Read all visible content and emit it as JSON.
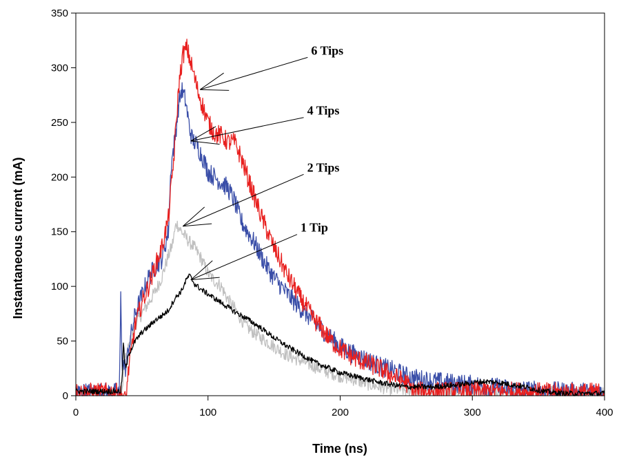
{
  "chart_data": {
    "type": "line",
    "xlabel": "Time (ns)",
    "ylabel": "Instantaneous current (mA)",
    "xlim": [
      0,
      400
    ],
    "ylim": [
      0,
      350
    ],
    "xticks": [
      0,
      100,
      200,
      300,
      400
    ],
    "yticks": [
      0,
      50,
      100,
      150,
      200,
      250,
      300,
      350
    ],
    "grid": false,
    "legend": "none",
    "series": [
      {
        "name": "6 Tips",
        "color": "#e8201f",
        "noise": 9,
        "points": [
          [
            0,
            3
          ],
          [
            30,
            3
          ],
          [
            36,
            0
          ],
          [
            38,
            0
          ],
          [
            40,
            25
          ],
          [
            45,
            65
          ],
          [
            50,
            85
          ],
          [
            55,
            100
          ],
          [
            60,
            118
          ],
          [
            65,
            135
          ],
          [
            70,
            162
          ],
          [
            74,
            215
          ],
          [
            78,
            285
          ],
          [
            81,
            312
          ],
          [
            84,
            318
          ],
          [
            88,
            300
          ],
          [
            92,
            280
          ],
          [
            96,
            265
          ],
          [
            100,
            250
          ],
          [
            105,
            240
          ],
          [
            110,
            238
          ],
          [
            115,
            232
          ],
          [
            120,
            232
          ],
          [
            125,
            218
          ],
          [
            130,
            200
          ],
          [
            135,
            182
          ],
          [
            140,
            165
          ],
          [
            145,
            150
          ],
          [
            150,
            135
          ],
          [
            155,
            123
          ],
          [
            160,
            110
          ],
          [
            165,
            100
          ],
          [
            170,
            89
          ],
          [
            175,
            80
          ],
          [
            180,
            70
          ],
          [
            185,
            63
          ],
          [
            190,
            55
          ],
          [
            195,
            48
          ],
          [
            200,
            43
          ],
          [
            210,
            35
          ],
          [
            220,
            30
          ],
          [
            230,
            25
          ],
          [
            240,
            18
          ],
          [
            250,
            12
          ],
          [
            255,
            4
          ],
          [
            265,
            4
          ],
          [
            300,
            4
          ],
          [
            330,
            4
          ],
          [
            360,
            3
          ],
          [
            400,
            3
          ]
        ]
      },
      {
        "name": "4 Tips",
        "color": "#3a4ea8",
        "noise": 9,
        "points": [
          [
            0,
            3
          ],
          [
            33,
            3
          ],
          [
            34,
            90
          ],
          [
            35,
            30
          ],
          [
            38,
            25
          ],
          [
            40,
            45
          ],
          [
            45,
            75
          ],
          [
            50,
            92
          ],
          [
            55,
            108
          ],
          [
            60,
            118
          ],
          [
            65,
            125
          ],
          [
            70,
            150
          ],
          [
            72,
            210
          ],
          [
            75,
            235
          ],
          [
            78,
            268
          ],
          [
            80,
            280
          ],
          [
            83,
            270
          ],
          [
            86,
            245
          ],
          [
            88,
            235
          ],
          [
            92,
            228
          ],
          [
            96,
            218
          ],
          [
            100,
            205
          ],
          [
            105,
            200
          ],
          [
            110,
            195
          ],
          [
            115,
            190
          ],
          [
            120,
            178
          ],
          [
            125,
            160
          ],
          [
            130,
            150
          ],
          [
            135,
            140
          ],
          [
            140,
            128
          ],
          [
            145,
            117
          ],
          [
            150,
            108
          ],
          [
            160,
            93
          ],
          [
            170,
            80
          ],
          [
            180,
            68
          ],
          [
            190,
            56
          ],
          [
            200,
            45
          ],
          [
            210,
            38
          ],
          [
            220,
            33
          ],
          [
            230,
            27
          ],
          [
            240,
            23
          ],
          [
            250,
            18
          ],
          [
            260,
            15
          ],
          [
            280,
            12
          ],
          [
            300,
            10
          ],
          [
            330,
            6
          ],
          [
            360,
            4
          ],
          [
            400,
            3
          ]
        ]
      },
      {
        "name": "2 Tips",
        "color": "#c0c0c0",
        "noise": 6,
        "points": [
          [
            0,
            3
          ],
          [
            35,
            3
          ],
          [
            37,
            30
          ],
          [
            40,
            45
          ],
          [
            45,
            65
          ],
          [
            50,
            75
          ],
          [
            55,
            85
          ],
          [
            60,
            95
          ],
          [
            65,
            108
          ],
          [
            70,
            128
          ],
          [
            73,
            138
          ],
          [
            76,
            158
          ],
          [
            80,
            150
          ],
          [
            85,
            142
          ],
          [
            90,
            135
          ],
          [
            95,
            125
          ],
          [
            100,
            112
          ],
          [
            105,
            105
          ],
          [
            110,
            100
          ],
          [
            115,
            88
          ],
          [
            120,
            80
          ],
          [
            125,
            70
          ],
          [
            130,
            62
          ],
          [
            140,
            53
          ],
          [
            150,
            45
          ],
          [
            160,
            37
          ],
          [
            170,
            32
          ],
          [
            180,
            27
          ],
          [
            190,
            22
          ],
          [
            200,
            18
          ],
          [
            210,
            15
          ],
          [
            220,
            11
          ],
          [
            230,
            8
          ],
          [
            240,
            6
          ],
          [
            260,
            4
          ],
          [
            300,
            4
          ],
          [
            400,
            2
          ]
        ]
      },
      {
        "name": "1 Tip",
        "color": "#000000",
        "noise": 2.5,
        "points": [
          [
            0,
            4
          ],
          [
            34,
            4
          ],
          [
            35,
            15
          ],
          [
            36,
            48
          ],
          [
            37,
            30
          ],
          [
            38,
            25
          ],
          [
            40,
            38
          ],
          [
            45,
            50
          ],
          [
            50,
            58
          ],
          [
            55,
            63
          ],
          [
            60,
            69
          ],
          [
            65,
            73
          ],
          [
            70,
            78
          ],
          [
            75,
            89
          ],
          [
            80,
            96
          ],
          [
            84,
            107
          ],
          [
            86,
            110
          ],
          [
            90,
            102
          ],
          [
            95,
            97
          ],
          [
            100,
            93
          ],
          [
            110,
            85
          ],
          [
            120,
            77
          ],
          [
            130,
            70
          ],
          [
            140,
            62
          ],
          [
            150,
            53
          ],
          [
            160,
            45
          ],
          [
            170,
            38
          ],
          [
            180,
            31
          ],
          [
            190,
            26
          ],
          [
            200,
            21
          ],
          [
            210,
            18
          ],
          [
            220,
            15
          ],
          [
            230,
            12
          ],
          [
            240,
            10
          ],
          [
            250,
            8
          ],
          [
            260,
            8
          ],
          [
            270,
            8
          ],
          [
            280,
            9
          ],
          [
            290,
            10
          ],
          [
            300,
            12
          ],
          [
            310,
            13
          ],
          [
            320,
            12
          ],
          [
            330,
            10
          ],
          [
            340,
            8
          ],
          [
            350,
            5
          ],
          [
            360,
            3
          ],
          [
            370,
            2
          ],
          [
            400,
            2
          ]
        ]
      }
    ],
    "annotations": [
      {
        "label": "6 Tips",
        "text_x": 178,
        "text_y": 312,
        "tip_x": 94,
        "tip_y": 280
      },
      {
        "label": "4 Tips",
        "text_x": 175,
        "text_y": 257,
        "tip_x": 87,
        "tip_y": 233
      },
      {
        "label": "2 Tips",
        "text_x": 175,
        "text_y": 205,
        "tip_x": 81,
        "tip_y": 155
      },
      {
        "label": "1 Tip",
        "text_x": 170,
        "text_y": 150,
        "tip_x": 87,
        "tip_y": 106
      }
    ]
  }
}
